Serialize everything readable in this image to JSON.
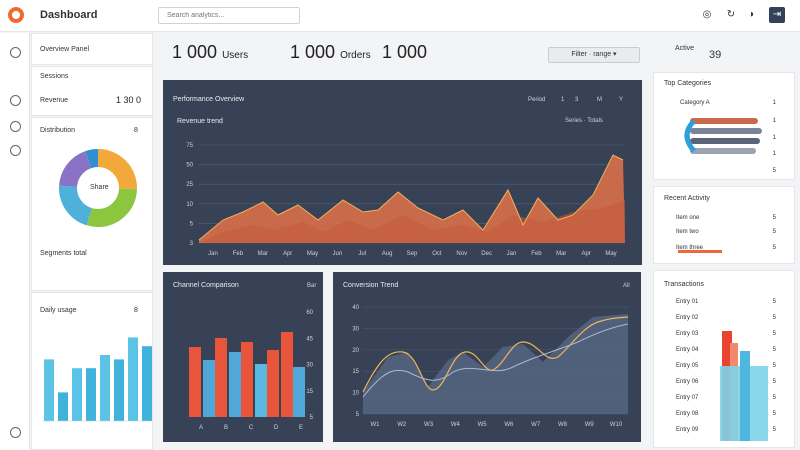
{
  "header": {
    "brand": "Dashboard",
    "search_placeholder": "Search analytics..."
  },
  "left": {
    "widget1": {
      "title": "Overview Panel",
      "sub": "Sessions",
      "label": "Revenue",
      "value": "1 30 0"
    },
    "donut": {
      "title": "Distribution",
      "value_label": "8",
      "center": "Share",
      "footer": "Segments total"
    },
    "mini_bars": {
      "title": "Daily usage",
      "value_label": "8",
      "values": [
        28,
        13,
        24,
        24,
        30,
        28,
        38,
        34
      ]
    }
  },
  "stats": [
    {
      "value": "1 000",
      "suffix": "Users"
    },
    {
      "value": "1 000",
      "suffix": "Orders"
    },
    {
      "value": "1 000",
      "suffix": ""
    }
  ],
  "filter": {
    "label": "Filter · range ▾"
  },
  "main_chart": {
    "title": "Performance Overview",
    "subtitle": "Revenue trend",
    "legend": "Series · Totals",
    "controls": [
      "Period",
      "1",
      "3",
      "M",
      "Y"
    ],
    "y_labels": [
      "75",
      "50",
      "25",
      "10",
      "5",
      "3"
    ],
    "x_labels": [
      "Jan",
      "Feb",
      "Mar",
      "Apr",
      "May",
      "Jun",
      "Jul",
      "Aug",
      "Sep",
      "Oct",
      "Nov",
      "Dec",
      "Jan",
      "Feb",
      "Mar",
      "Apr",
      "May"
    ]
  },
  "bar_panel": {
    "title": "Channel Comparison",
    "badge": "Bar",
    "y_labels": [
      "60",
      "45",
      "30",
      "15",
      "5"
    ],
    "x_labels": [
      "A",
      "B",
      "C",
      "D",
      "E"
    ]
  },
  "line_panel": {
    "title": "Conversion Trend",
    "badge": "All",
    "y_labels": [
      "40",
      "30",
      "20",
      "15",
      "10",
      "5"
    ],
    "x_labels": [
      "W1",
      "W2",
      "W3",
      "W4",
      "W5",
      "W6",
      "W7",
      "W8",
      "W9",
      "W10"
    ]
  },
  "right": {
    "top": {
      "title": "Active",
      "value": "39"
    },
    "list1": {
      "title": "Top Categories",
      "rows": [
        {
          "label": "Category A",
          "num": "1"
        },
        {
          "label": "",
          "num": "1"
        },
        {
          "label": "",
          "num": "1"
        },
        {
          "label": "",
          "num": "1"
        }
      ],
      "footer_num": "5"
    },
    "list2": {
      "title": "Recent Activity",
      "rows": [
        {
          "label": "Item one",
          "num": "5"
        },
        {
          "label": "Item two",
          "num": "5"
        },
        {
          "label": "Item three",
          "num": "5"
        }
      ]
    },
    "list3": {
      "title": "Transactions",
      "rows": [
        {
          "label": "Entry 01",
          "num": "5"
        },
        {
          "label": "Entry 02",
          "num": "5"
        },
        {
          "label": "Entry 03",
          "num": "5"
        },
        {
          "label": "Entry 04",
          "num": "5"
        },
        {
          "label": "Entry 05",
          "num": "5"
        },
        {
          "label": "Entry 06",
          "num": "5"
        },
        {
          "label": "Entry 07",
          "num": "5"
        },
        {
          "label": "Entry 08",
          "num": "5"
        },
        {
          "label": "Entry 09",
          "num": "5"
        }
      ]
    }
  },
  "colors": {
    "accent": "#f2692b",
    "panel": "#374256",
    "orange": "#e8693b",
    "blue": "#4fa3d9"
  }
}
